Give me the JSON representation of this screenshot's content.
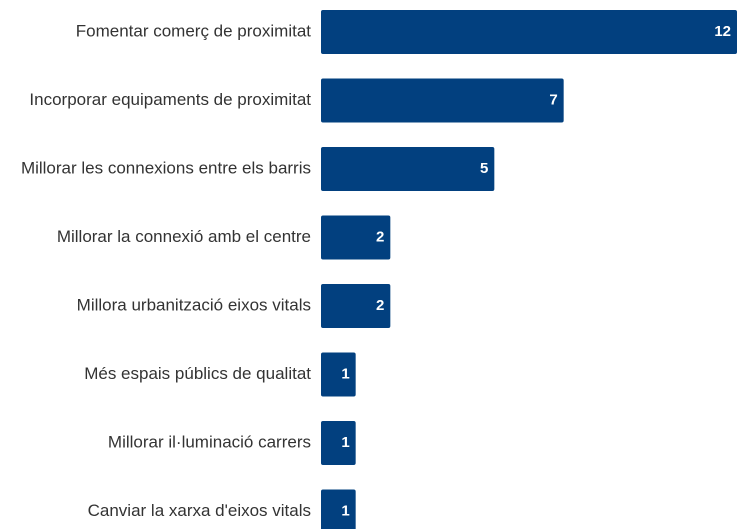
{
  "chart_data": {
    "type": "bar",
    "categories": [
      "Fomentar comerç de proximitat",
      "Incorporar equipaments de proximitat",
      "Millorar les connexions entre els barris",
      "Millorar la connexió amb el centre",
      "Millora urbanització eixos vitals",
      "Més espais públics de qualitat",
      "Millorar il·luminació carrers",
      "Canviar la xarxa d'eixos vitals"
    ],
    "values": [
      12,
      7,
      5,
      2,
      2,
      1,
      1,
      1
    ],
    "color": "#02407f"
  }
}
